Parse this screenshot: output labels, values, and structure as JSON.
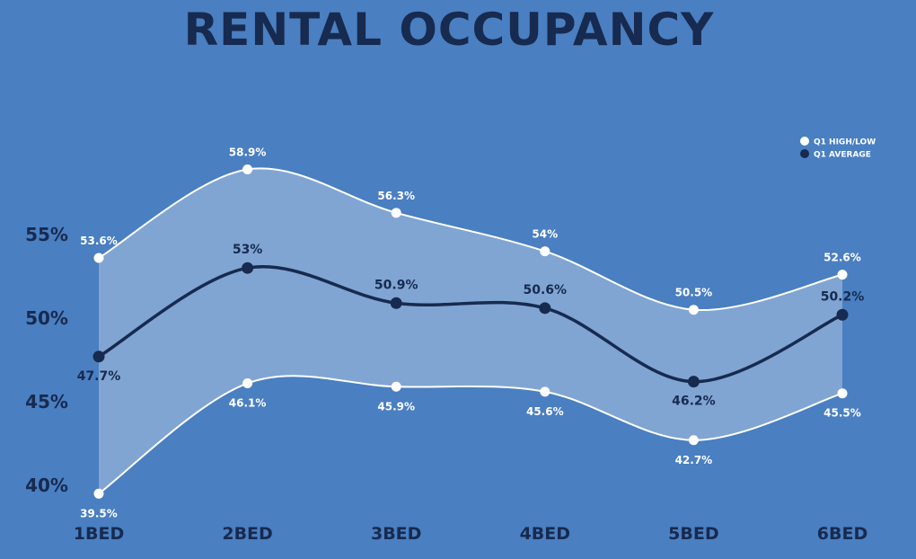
{
  "chart_data": {
    "type": "line",
    "title": "RENTAL OCCUPANCY",
    "categories": [
      "1BED",
      "2BED",
      "3BED",
      "4BED",
      "5BED",
      "6BED"
    ],
    "series": [
      {
        "name": "Q1 HIGH/LOW",
        "role": "high",
        "values": [
          53.6,
          58.9,
          56.3,
          54,
          50.5,
          52.6
        ],
        "labels": [
          "53.6%",
          "58.9%",
          "56.3%",
          "54%",
          "50.5%",
          "52.6%"
        ],
        "color": "#ffffff"
      },
      {
        "name": "Q1 HIGH/LOW",
        "role": "low",
        "values": [
          39.5,
          46.1,
          45.9,
          45.6,
          42.7,
          45.5
        ],
        "labels": [
          "39.5%",
          "46.1%",
          "45.9%",
          "45.6%",
          "42.7%",
          "45.5%"
        ],
        "color": "#ffffff"
      },
      {
        "name": "Q1 AVERAGE",
        "role": "average",
        "values": [
          47.7,
          53,
          50.9,
          50.6,
          46.2,
          50.2
        ],
        "labels": [
          "47.7%",
          "53%",
          "50.9%",
          "50.6%",
          "46.2%",
          "50.2%"
        ],
        "color": "#172a4f"
      }
    ],
    "y_ticks": [
      {
        "value": 40,
        "label": "40%"
      },
      {
        "value": 45,
        "label": "45%"
      },
      {
        "value": 50,
        "label": "50%"
      },
      {
        "value": 55,
        "label": "55%"
      }
    ],
    "ylim": [
      39.5,
      58.9
    ],
    "grid": false,
    "legend": {
      "position": "top-right",
      "entries": [
        {
          "label": "Q1 HIGH/LOW",
          "color": "#ffffff"
        },
        {
          "label": "Q1 AVERAGE",
          "color": "#172a4f"
        }
      ]
    },
    "colors": {
      "background": "#4a7fc1",
      "band_fill": "#ffffff",
      "dark": "#172a4f"
    }
  }
}
